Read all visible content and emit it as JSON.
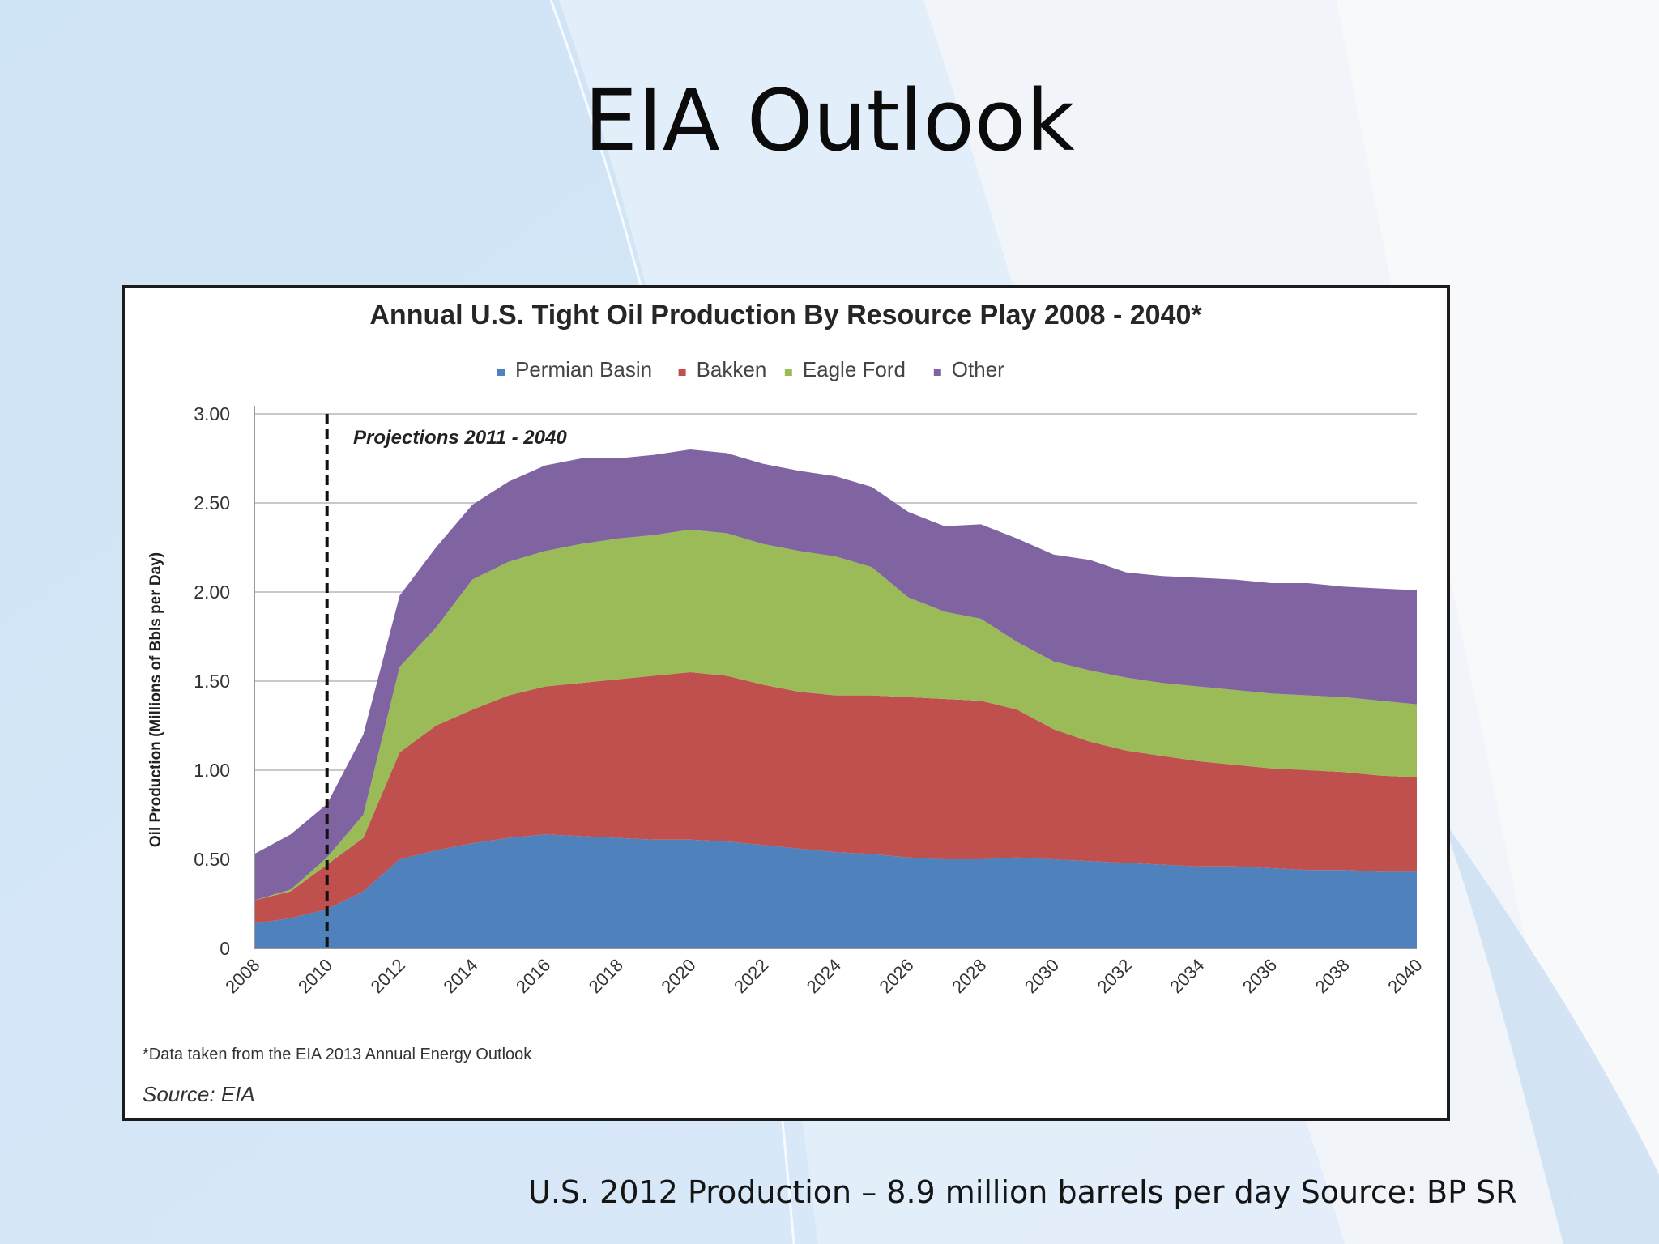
{
  "slide": {
    "title": "EIA Outlook",
    "caption": "U.S. 2012 Production – 8.9 million barrels per day Source:  BP SR"
  },
  "colors": {
    "permian": "#4f81bd",
    "bakken": "#c0504d",
    "eagle_ford": "#9bbb59",
    "other": "#8064a2"
  },
  "chart_data": {
    "type": "area",
    "stacked": true,
    "title": "Annual U.S. Tight Oil Production By Resource Play 2008 - 2040*",
    "ylabel": "Oil Production (Millions of Bbls per Day)",
    "xlabel": "",
    "ylim": [
      0,
      3.0
    ],
    "xlim": [
      2008,
      2040
    ],
    "grid": true,
    "legend_position": "top",
    "y_ticks": [
      "0",
      "0.50",
      "1.00",
      "1.50",
      "2.00",
      "2.50",
      "3.00"
    ],
    "x_ticks": [
      "2008",
      "2010",
      "2012",
      "2014",
      "2016",
      "2018",
      "2020",
      "2022",
      "2024",
      "2026",
      "2028",
      "2030",
      "2032",
      "2034",
      "2036",
      "2038",
      "2040"
    ],
    "annotation": "Projections 2011 - 2040",
    "projection_start": 2010,
    "footnote": "*Data taken from the EIA 2013 Annual Energy Outlook",
    "source": "Source: EIA",
    "x": [
      2008,
      2009,
      2010,
      2011,
      2012,
      2013,
      2014,
      2015,
      2016,
      2017,
      2018,
      2019,
      2020,
      2021,
      2022,
      2023,
      2024,
      2025,
      2026,
      2027,
      2028,
      2029,
      2030,
      2031,
      2032,
      2033,
      2034,
      2035,
      2036,
      2037,
      2038,
      2039,
      2040
    ],
    "series": [
      {
        "name": "Permian Basin",
        "color_key": "permian",
        "values": [
          0.14,
          0.17,
          0.22,
          0.32,
          0.5,
          0.55,
          0.59,
          0.62,
          0.64,
          0.63,
          0.62,
          0.61,
          0.61,
          0.6,
          0.58,
          0.56,
          0.54,
          0.53,
          0.51,
          0.5,
          0.5,
          0.51,
          0.5,
          0.49,
          0.48,
          0.47,
          0.46,
          0.46,
          0.45,
          0.44,
          0.44,
          0.43,
          0.43
        ]
      },
      {
        "name": "Bakken",
        "color_key": "bakken",
        "values": [
          0.13,
          0.15,
          0.25,
          0.3,
          0.6,
          0.7,
          0.75,
          0.8,
          0.83,
          0.86,
          0.89,
          0.92,
          0.94,
          0.93,
          0.9,
          0.88,
          0.88,
          0.89,
          0.9,
          0.9,
          0.89,
          0.83,
          0.73,
          0.67,
          0.63,
          0.61,
          0.59,
          0.57,
          0.56,
          0.56,
          0.55,
          0.54,
          0.53
        ]
      },
      {
        "name": "Eagle Ford",
        "color_key": "eagle_ford",
        "values": [
          0.0,
          0.01,
          0.04,
          0.13,
          0.48,
          0.55,
          0.73,
          0.75,
          0.76,
          0.78,
          0.79,
          0.79,
          0.8,
          0.8,
          0.79,
          0.79,
          0.78,
          0.72,
          0.56,
          0.49,
          0.46,
          0.38,
          0.38,
          0.4,
          0.41,
          0.41,
          0.42,
          0.42,
          0.42,
          0.42,
          0.42,
          0.42,
          0.41
        ]
      },
      {
        "name": "Other",
        "color_key": "other",
        "values": [
          0.26,
          0.31,
          0.3,
          0.45,
          0.4,
          0.45,
          0.42,
          0.45,
          0.48,
          0.48,
          0.45,
          0.45,
          0.45,
          0.45,
          0.45,
          0.45,
          0.45,
          0.45,
          0.48,
          0.48,
          0.53,
          0.58,
          0.6,
          0.62,
          0.59,
          0.6,
          0.61,
          0.62,
          0.62,
          0.63,
          0.62,
          0.63,
          0.64
        ]
      }
    ]
  }
}
